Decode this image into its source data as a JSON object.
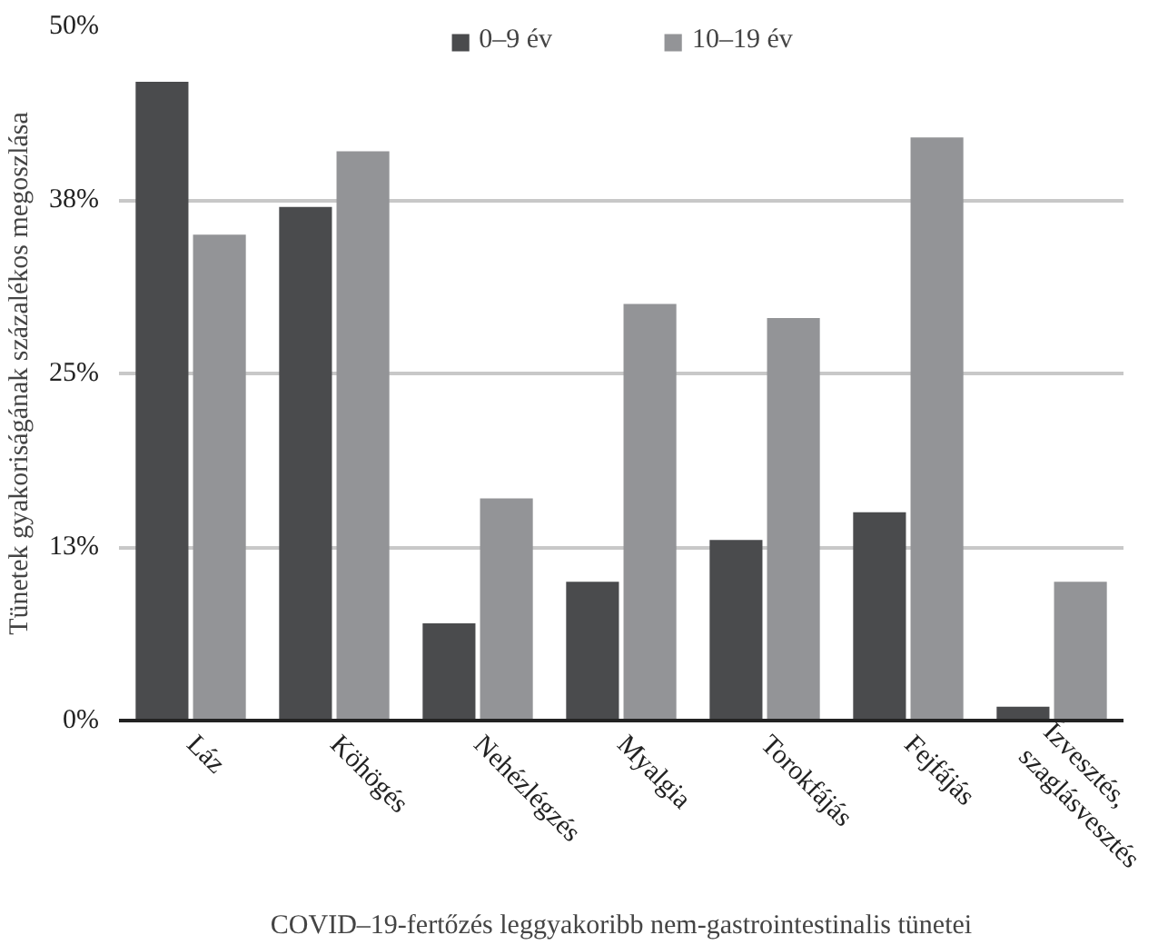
{
  "chart_data": {
    "type": "bar",
    "categories": [
      "Láz",
      "Köhögés",
      "Nehézlégzés",
      "Myalgia",
      "Torokfájás",
      "Fejfájás",
      "Ízvesztés,\nszaglásvesztés"
    ],
    "series": [
      {
        "name": "0–9 év",
        "color": "#4a4b4d",
        "values": [
          46,
          37,
          7,
          10,
          13,
          15,
          1
        ]
      },
      {
        "name": "10–19 év",
        "color": "#939497",
        "values": [
          35,
          41,
          16,
          30,
          29,
          42,
          10
        ]
      }
    ],
    "xlabel": "COVID–19-fertőzés leggyakoribb nem-gastrointestinalis tünetei",
    "ylabel": "Tünetek gyakoriságának százalékos megoszlása",
    "ylim": [
      0,
      50
    ],
    "yticks": [
      {
        "value": 0,
        "label": "0%"
      },
      {
        "value": 12.5,
        "label": "13%"
      },
      {
        "value": 25,
        "label": "25%"
      },
      {
        "value": 37.5,
        "label": "38%"
      },
      {
        "value": 50,
        "label": "50%"
      }
    ],
    "grid": "y",
    "legend": "top"
  }
}
